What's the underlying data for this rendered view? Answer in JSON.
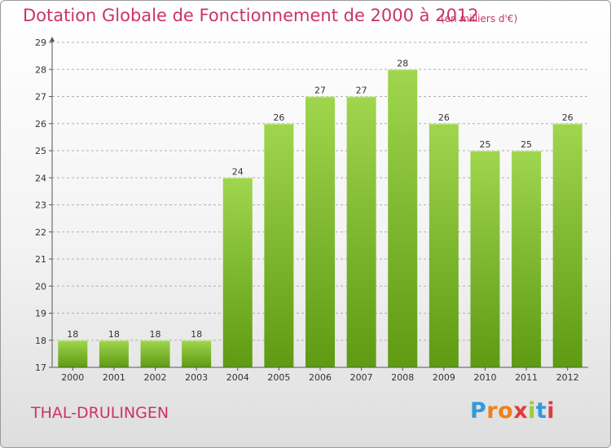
{
  "title": "Dotation Globale de Fonctionnement de 2000 à 2012",
  "subtitle": "(en milliers d'€)",
  "commune": "THAL-DRULINGEN",
  "brand": {
    "letters": [
      "P",
      "r",
      "o",
      "x",
      "i",
      "t",
      "i"
    ],
    "colors": [
      "#3399dd",
      "#f07f1c",
      "#f07f1c",
      "#e23a3a",
      "#99cc33",
      "#3399dd",
      "#e23a3a"
    ]
  },
  "colors": {
    "bar_top": "#9fd64e",
    "bar_bottom": "#5e9a12",
    "grid": "#b0b0b0",
    "title": "#cc3366"
  },
  "chart_data": {
    "type": "bar",
    "categories": [
      "2000",
      "2001",
      "2002",
      "2003",
      "2004",
      "2005",
      "2006",
      "2007",
      "2008",
      "2009",
      "2010",
      "2011",
      "2012"
    ],
    "values": [
      18,
      18,
      18,
      18,
      24,
      26,
      27,
      27,
      28,
      26,
      25,
      25,
      26
    ],
    "title": "Dotation Globale de Fonctionnement de 2000 à 2012",
    "subtitle": "(en milliers d'€)",
    "xlabel": "",
    "ylabel": "",
    "ylim": [
      17,
      29
    ],
    "yticks": [
      17,
      18,
      19,
      20,
      21,
      22,
      23,
      24,
      25,
      26,
      27,
      28,
      29
    ],
    "grid": true,
    "data_labels": true
  }
}
